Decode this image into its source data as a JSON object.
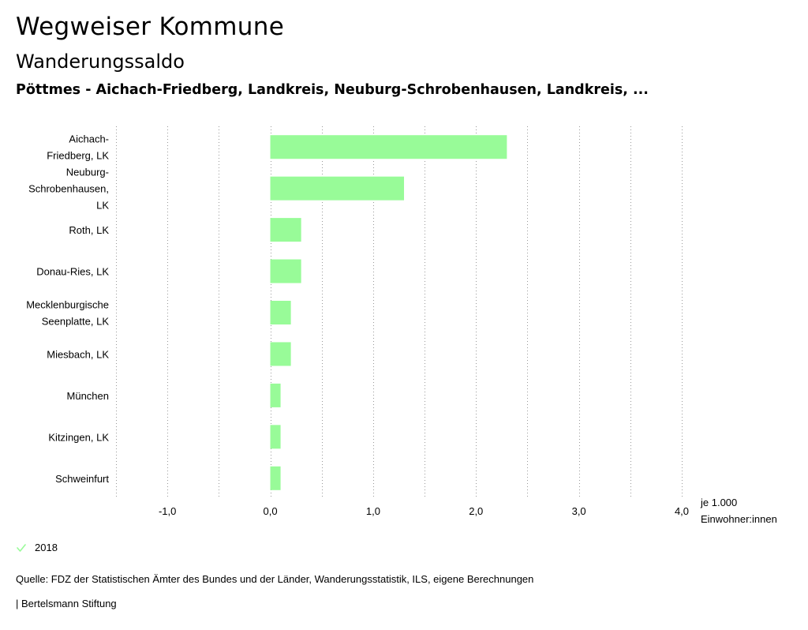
{
  "header": {
    "title": "Wegweiser Kommune",
    "subtitle": "Wanderungssaldo",
    "description": "Pöttmes - Aichach-Friedberg, Landkreis, Neuburg-Schrobenhausen, Landkreis, ..."
  },
  "colors": {
    "bar": "#98fb98",
    "grid": "#999999",
    "text": "#000000"
  },
  "chart_data": {
    "type": "bar",
    "orientation": "horizontal",
    "categories": [
      [
        "Aichach-",
        "Friedberg, LK"
      ],
      [
        "Neuburg-",
        "Schrobenhausen,",
        "LK"
      ],
      [
        "Roth, LK"
      ],
      [
        "Donau-Ries, LK"
      ],
      [
        "Mecklenburgische",
        "Seenplatte, LK"
      ],
      [
        "Miesbach, LK"
      ],
      [
        "München"
      ],
      [
        "Kitzingen, LK"
      ],
      [
        "Schweinfurt"
      ]
    ],
    "series": [
      {
        "name": "2018",
        "values": [
          2.3,
          1.3,
          0.3,
          0.3,
          0.2,
          0.2,
          0.1,
          0.1,
          0.1
        ]
      }
    ],
    "xlim": [
      -1.5,
      4.0
    ],
    "xticks": [
      -1.0,
      0.0,
      1.0,
      2.0,
      3.0,
      4.0
    ],
    "xtick_labels": [
      "-1,0",
      "0,0",
      "1,0",
      "2,0",
      "3,0",
      "4,0"
    ],
    "grid_step": 0.5,
    "xlabel": [
      "je 1.000",
      "Einwohner:innen"
    ],
    "grid": true
  },
  "legend": {
    "items": [
      {
        "label": "2018",
        "icon": "check-icon"
      }
    ]
  },
  "footer": {
    "source": "Quelle: FDZ der Statistischen Ämter des Bundes und der Länder, Wanderungsstatistik, ILS, eigene Berechnungen",
    "publisher": "| Bertelsmann Stiftung"
  }
}
